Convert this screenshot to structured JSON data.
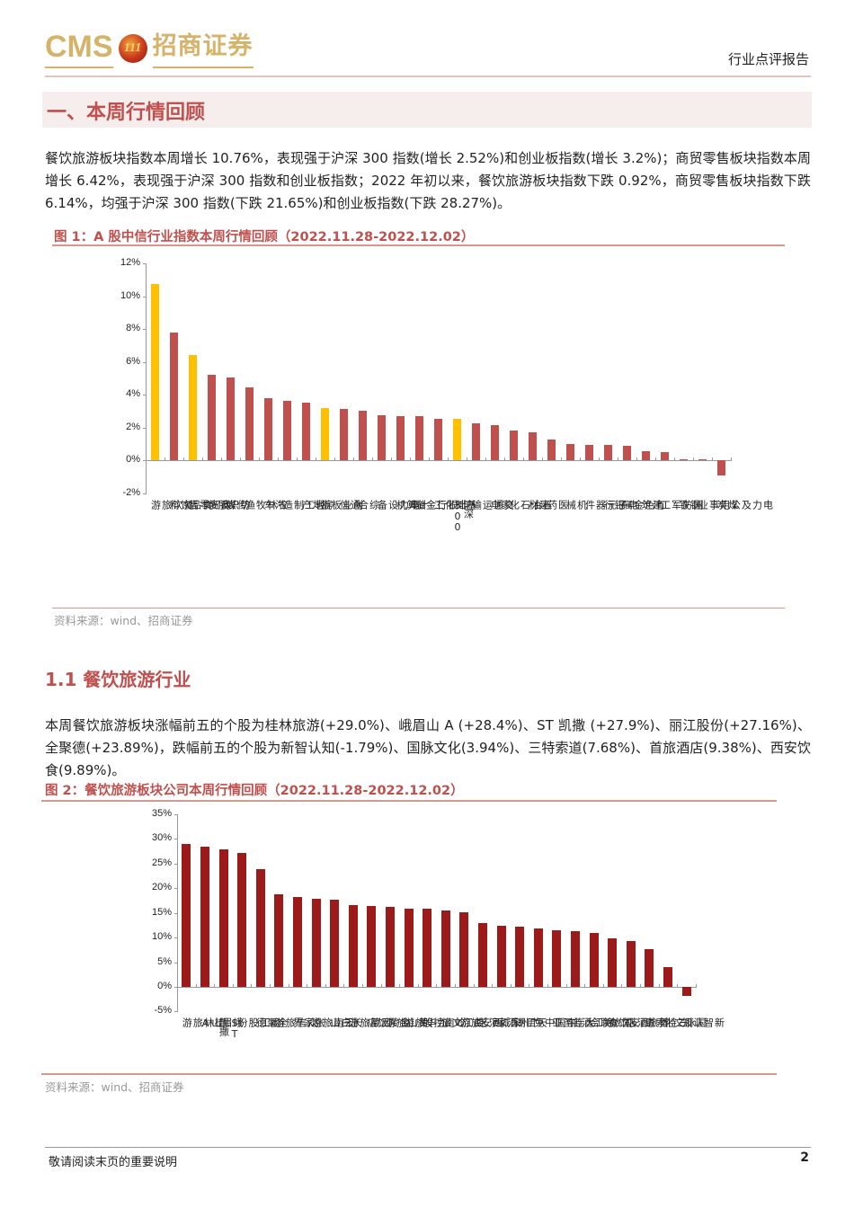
{
  "header": {
    "logo_en": "CMS",
    "logo_badge": "111",
    "logo_cn": "招商证券",
    "report_type": "行业点评报告"
  },
  "section1": {
    "title": "一、本周行情回顾",
    "paragraph": "餐饮旅游板块指数本周增长 10.76%，表现强于沪深 300 指数(增长 2.52%)和创业板指数(增长 3.2%)；商贸零售板块指数本周增长 6.42%，表现强于沪深 300 指数和创业板指数；2022 年初以来，餐饮旅游板块指数下跌 0.92%，商贸零售板块指数下跌 6.14%，均强于沪深 300 指数(下跌 21.65%)和创业板指数(下跌 28.27%)。"
  },
  "figure1": {
    "title": "图 1：A 股中信行业指数本周行情回顾（2022.11.28-2022.12.02）",
    "source": "资料来源：wind、招商证券"
  },
  "section1_1": {
    "title": "1.1 餐饮旅游行业",
    "paragraph": "本周餐饮旅游板块涨幅前五的个股为桂林旅游(+29.0%)、峨眉山 A (+28.4%)、ST 凯撒 (+27.9%)、丽江股份(+27.16%)、全聚德(+23.89%)，跌幅前五的个股为新智认知(-1.79%)、国脉文化(3.94%)、三特索道(7.68%)、首旅酒店(9.38%)、西安饮食(9.89%)。"
  },
  "figure2": {
    "title": "图 2：餐饮旅游板块公司本周行情回顾（2022.11.28-2022.12.02）",
    "source": "资料来源：wind、招商证券"
  },
  "footer": {
    "note": "敬请阅读末页的重要说明",
    "page": "2"
  },
  "colors": {
    "accent": "#c0504d",
    "bar_red": "#c0504d",
    "bar_highlight": "#ffc000",
    "bar_darkred": "#9c1a1a",
    "logo_gold": "#d6b36a"
  },
  "chart_data": [
    {
      "type": "bar",
      "title": "A 股中信行业指数本周行情回顾（2022.11.28-2022.12.02）",
      "xlabel": "",
      "ylabel": "",
      "ylim": [
        -2,
        12
      ],
      "yticks": [
        "12%",
        "10%",
        "8%",
        "6%",
        "4%",
        "2%",
        "0%",
        "-2%"
      ],
      "grid": false,
      "categories": [
        "餐饮旅游",
        "食品饮料",
        "商贸零售",
        "纺织服装",
        "传媒",
        "农林牧渔",
        "汽车",
        "轻工制造",
        "房地产",
        "创业板指",
        "通信",
        "综合",
        "电力设备",
        "计算机",
        "非银行金融",
        "基础化工",
        "沪深300",
        "交通运输",
        "家电",
        "石油石化",
        "建材",
        "医药",
        "机械",
        "电子元器件",
        "银行",
        "有色金属",
        "建筑",
        "国防军工",
        "钢铁",
        "电力及公用事业",
        "煤炭"
      ],
      "values": [
        10.76,
        7.8,
        6.42,
        5.21,
        5.03,
        4.42,
        3.77,
        3.64,
        3.51,
        3.2,
        3.14,
        3.03,
        2.73,
        2.7,
        2.7,
        2.5,
        2.52,
        2.25,
        2.14,
        1.82,
        1.71,
        1.27,
        1.0,
        0.93,
        0.91,
        0.9,
        0.53,
        0.47,
        0.08,
        0.03,
        -0.92
      ],
      "highlight": [
        "餐饮旅游",
        "商贸零售",
        "创业板指",
        "沪深300"
      ]
    },
    {
      "type": "bar",
      "title": "餐饮旅游板块公司本周行情回顾（2022.11.28-2022.12.02）",
      "xlabel": "",
      "ylabel": "",
      "ylim": [
        -5,
        35
      ],
      "yticks": [
        "35%",
        "30%",
        "25%",
        "20%",
        "15%",
        "10%",
        "5%",
        "0%",
        "-5%"
      ],
      "grid": false,
      "categories": [
        "桂林旅游",
        "峨眉山A",
        "ST凯撒",
        "丽江股份",
        "全聚德",
        "众信旅游",
        "张家界",
        "云南旅游",
        "长白山",
        "西藏旅游",
        "金陵饭店",
        "黄山旅游",
        "九华旅游",
        "岭南控股",
        "曲江文旅",
        "西安旅游",
        "宋城演艺",
        "广州酒家",
        "天目湖",
        "中国中免",
        "大连圣亚",
        "锦江酒店",
        "国旅联合",
        "西安饮食",
        "首旅酒店",
        "三特索道",
        "国脉文化",
        "新智认知"
      ],
      "values": [
        29.0,
        28.4,
        27.9,
        27.16,
        23.89,
        18.8,
        18.2,
        17.9,
        17.7,
        16.6,
        16.4,
        16.2,
        15.9,
        15.9,
        15.5,
        15.1,
        12.9,
        12.4,
        12.3,
        11.8,
        11.4,
        11.35,
        11.0,
        9.89,
        9.38,
        7.68,
        3.94,
        -1.79
      ]
    }
  ]
}
